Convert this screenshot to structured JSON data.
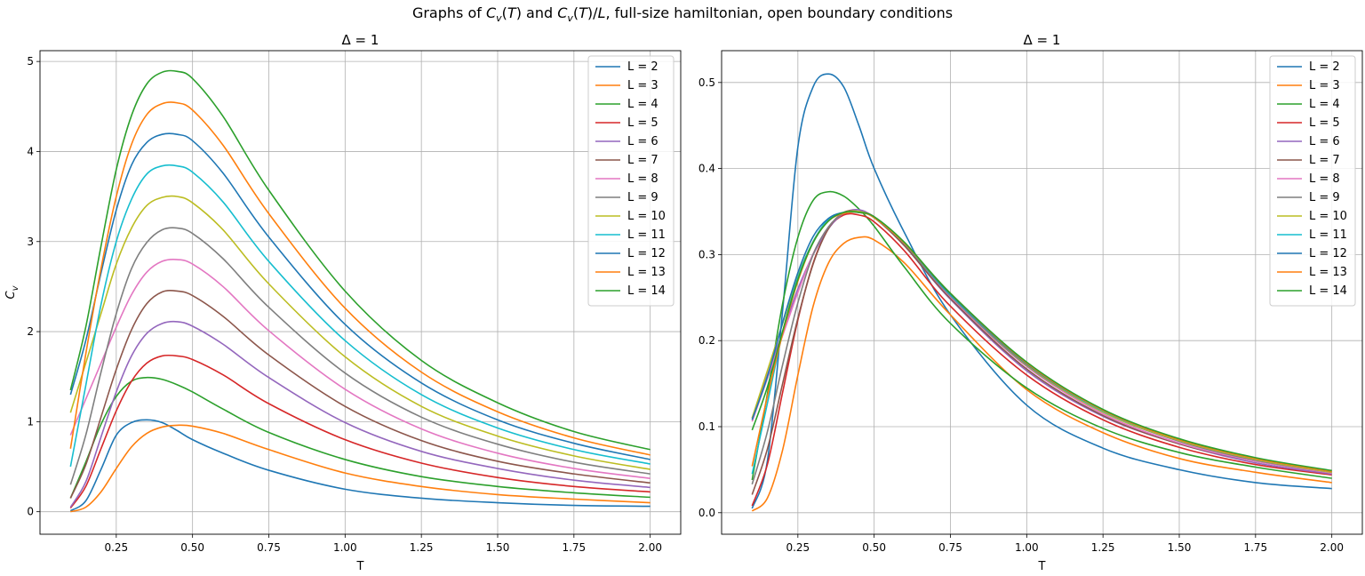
{
  "suptitle": "Graphs of C_v(T) and C_v(T)/L, full-size hamiltonian, open boundary conditions",
  "colors": [
    "#1f77b4",
    "#ff7f0e",
    "#2ca02c",
    "#d62728",
    "#9467bd",
    "#8c564b",
    "#e377c2",
    "#7f7f7f",
    "#bcbd22",
    "#17becf",
    "#1f77b4",
    "#ff7f0e",
    "#2ca02c"
  ],
  "chart_data": [
    {
      "type": "line",
      "title": "Δ = 1",
      "xlabel": "T",
      "ylabel": "C_v",
      "xlim": [
        -0.0,
        2.1
      ],
      "ylim": [
        -0.25,
        5.12
      ],
      "xticks": [
        0.25,
        0.5,
        0.75,
        1.0,
        1.25,
        1.5,
        1.75,
        2.0
      ],
      "xtick_labels": [
        "0.25",
        "0.50",
        "0.75",
        "1.00",
        "1.25",
        "1.50",
        "1.75",
        "2.00"
      ],
      "yticks": [
        0,
        1,
        2,
        3,
        4,
        5
      ],
      "ytick_labels": [
        "0",
        "1",
        "2",
        "3",
        "4",
        "5"
      ],
      "grid": true,
      "legend": "top-right",
      "x": [
        0.1,
        0.15,
        0.2,
        0.25,
        0.3,
        0.35,
        0.4,
        0.45,
        0.5,
        0.6,
        0.75,
        1.0,
        1.25,
        1.5,
        1.75,
        2.0
      ],
      "series": [
        {
          "name": "L = 2",
          "values": [
            0.01,
            0.12,
            0.47,
            0.85,
            0.99,
            1.02,
            0.99,
            0.9,
            0.8,
            0.65,
            0.46,
            0.25,
            0.15,
            0.1,
            0.07,
            0.06
          ]
        },
        {
          "name": "L = 3",
          "values": [
            0.0,
            0.05,
            0.22,
            0.48,
            0.72,
            0.87,
            0.94,
            0.96,
            0.95,
            0.87,
            0.69,
            0.43,
            0.28,
            0.19,
            0.14,
            0.1
          ]
        },
        {
          "name": "L = 4",
          "values": [
            0.15,
            0.55,
            0.97,
            1.28,
            1.45,
            1.49,
            1.47,
            1.41,
            1.33,
            1.14,
            0.88,
            0.58,
            0.39,
            0.28,
            0.21,
            0.16
          ]
        },
        {
          "name": "L = 5",
          "values": [
            0.04,
            0.28,
            0.7,
            1.12,
            1.45,
            1.65,
            1.73,
            1.73,
            1.69,
            1.52,
            1.2,
            0.8,
            0.54,
            0.38,
            0.28,
            0.22
          ]
        },
        {
          "name": "L = 6",
          "values": [
            0.05,
            0.33,
            0.83,
            1.33,
            1.73,
            1.98,
            2.09,
            2.11,
            2.06,
            1.86,
            1.49,
            0.99,
            0.67,
            0.48,
            0.35,
            0.27
          ]
        },
        {
          "name": "L = 7",
          "values": [
            0.15,
            0.52,
            1.05,
            1.58,
            2.02,
            2.31,
            2.44,
            2.45,
            2.4,
            2.17,
            1.74,
            1.17,
            0.79,
            0.56,
            0.42,
            0.32
          ]
        },
        {
          "name": "L = 8",
          "values": [
            0.85,
            1.25,
            1.65,
            2.05,
            2.41,
            2.66,
            2.78,
            2.8,
            2.75,
            2.5,
            2.01,
            1.36,
            0.92,
            0.65,
            0.48,
            0.37
          ]
        },
        {
          "name": "L = 9",
          "values": [
            0.3,
            0.85,
            1.55,
            2.2,
            2.7,
            2.99,
            3.13,
            3.15,
            3.09,
            2.81,
            2.27,
            1.54,
            1.05,
            0.75,
            0.55,
            0.42
          ]
        },
        {
          "name": "L = 10",
          "values": [
            1.1,
            1.65,
            2.2,
            2.75,
            3.15,
            3.4,
            3.49,
            3.5,
            3.43,
            3.13,
            2.53,
            1.72,
            1.17,
            0.84,
            0.62,
            0.47
          ]
        },
        {
          "name": "L = 11",
          "values": [
            0.5,
            1.4,
            2.3,
            3.0,
            3.47,
            3.75,
            3.84,
            3.84,
            3.77,
            3.44,
            2.78,
            1.9,
            1.3,
            0.93,
            0.69,
            0.53
          ]
        },
        {
          "name": "L = 12",
          "values": [
            1.3,
            1.9,
            2.65,
            3.35,
            3.85,
            4.1,
            4.19,
            4.19,
            4.12,
            3.76,
            3.05,
            2.08,
            1.43,
            1.02,
            0.76,
            0.58
          ]
        },
        {
          "name": "L = 13",
          "values": [
            0.7,
            1.75,
            2.7,
            3.5,
            4.08,
            4.41,
            4.53,
            4.54,
            4.46,
            4.07,
            3.31,
            2.26,
            1.55,
            1.11,
            0.82,
            0.63
          ]
        },
        {
          "name": "L = 14",
          "values": [
            1.35,
            2.05,
            2.95,
            3.8,
            4.4,
            4.75,
            4.88,
            4.89,
            4.81,
            4.39,
            3.57,
            2.45,
            1.68,
            1.21,
            0.89,
            0.69
          ]
        }
      ]
    },
    {
      "type": "line",
      "title": "Δ = 1",
      "xlabel": "T",
      "ylabel": "",
      "xlim": [
        -0.0,
        2.1
      ],
      "ylim": [
        -0.025,
        0.537
      ],
      "xticks": [
        0.25,
        0.5,
        0.75,
        1.0,
        1.25,
        1.5,
        1.75,
        2.0
      ],
      "xtick_labels": [
        "0.25",
        "0.50",
        "0.75",
        "1.00",
        "1.25",
        "1.50",
        "1.75",
        "2.00"
      ],
      "yticks": [
        0.0,
        0.1,
        0.2,
        0.3,
        0.4,
        0.5
      ],
      "ytick_labels": [
        "0.0",
        "0.1",
        "0.2",
        "0.3",
        "0.4",
        "0.5"
      ],
      "grid": true,
      "legend": "top-right",
      "x": [
        0.1,
        0.15,
        0.2,
        0.25,
        0.3,
        0.35,
        0.4,
        0.45,
        0.5,
        0.6,
        0.75,
        1.0,
        1.25,
        1.5,
        1.75,
        2.0
      ],
      "series": [
        {
          "name": "L = 2",
          "values": [
            0.005,
            0.06,
            0.235,
            0.425,
            0.495,
            0.51,
            0.495,
            0.45,
            0.4,
            0.325,
            0.23,
            0.125,
            0.075,
            0.05,
            0.035,
            0.028
          ]
        },
        {
          "name": "L = 3",
          "values": [
            0.002,
            0.017,
            0.073,
            0.16,
            0.24,
            0.29,
            0.313,
            0.32,
            0.317,
            0.29,
            0.23,
            0.143,
            0.093,
            0.063,
            0.047,
            0.035
          ]
        },
        {
          "name": "L = 4",
          "values": [
            0.038,
            0.138,
            0.243,
            0.32,
            0.363,
            0.373,
            0.368,
            0.353,
            0.333,
            0.285,
            0.22,
            0.145,
            0.098,
            0.07,
            0.053,
            0.04
          ]
        },
        {
          "name": "L = 5",
          "values": [
            0.008,
            0.056,
            0.14,
            0.224,
            0.29,
            0.33,
            0.346,
            0.346,
            0.338,
            0.304,
            0.24,
            0.16,
            0.108,
            0.076,
            0.056,
            0.044
          ]
        },
        {
          "name": "L = 6",
          "values": [
            0.11,
            0.16,
            0.21,
            0.26,
            0.3,
            0.33,
            0.348,
            0.352,
            0.343,
            0.31,
            0.248,
            0.165,
            0.112,
            0.08,
            0.058,
            0.045
          ]
        },
        {
          "name": "L = 7",
          "values": [
            0.021,
            0.074,
            0.15,
            0.226,
            0.289,
            0.33,
            0.349,
            0.35,
            0.343,
            0.31,
            0.249,
            0.167,
            0.113,
            0.08,
            0.06,
            0.046
          ]
        },
        {
          "name": "L = 8",
          "values": [
            0.106,
            0.156,
            0.206,
            0.256,
            0.301,
            0.332,
            0.348,
            0.35,
            0.344,
            0.313,
            0.251,
            0.17,
            0.115,
            0.081,
            0.06,
            0.046
          ]
        },
        {
          "name": "L = 9",
          "values": [
            0.033,
            0.094,
            0.172,
            0.244,
            0.3,
            0.332,
            0.348,
            0.35,
            0.343,
            0.312,
            0.252,
            0.171,
            0.117,
            0.083,
            0.061,
            0.047
          ]
        },
        {
          "name": "L = 10",
          "values": [
            0.11,
            0.165,
            0.22,
            0.275,
            0.315,
            0.34,
            0.349,
            0.35,
            0.343,
            0.313,
            0.253,
            0.172,
            0.117,
            0.084,
            0.062,
            0.047
          ]
        },
        {
          "name": "L = 11",
          "values": [
            0.045,
            0.127,
            0.209,
            0.273,
            0.315,
            0.341,
            0.349,
            0.349,
            0.343,
            0.313,
            0.253,
            0.173,
            0.118,
            0.085,
            0.063,
            0.048
          ]
        },
        {
          "name": "L = 12",
          "values": [
            0.108,
            0.158,
            0.221,
            0.279,
            0.321,
            0.342,
            0.349,
            0.349,
            0.343,
            0.313,
            0.254,
            0.173,
            0.119,
            0.085,
            0.063,
            0.048
          ]
        },
        {
          "name": "L = 13",
          "values": [
            0.054,
            0.135,
            0.208,
            0.269,
            0.314,
            0.339,
            0.348,
            0.349,
            0.343,
            0.313,
            0.255,
            0.174,
            0.119,
            0.085,
            0.063,
            0.048
          ]
        },
        {
          "name": "L = 14",
          "values": [
            0.096,
            0.146,
            0.211,
            0.271,
            0.314,
            0.339,
            0.349,
            0.349,
            0.344,
            0.314,
            0.255,
            0.175,
            0.12,
            0.086,
            0.064,
            0.049
          ]
        }
      ]
    }
  ]
}
